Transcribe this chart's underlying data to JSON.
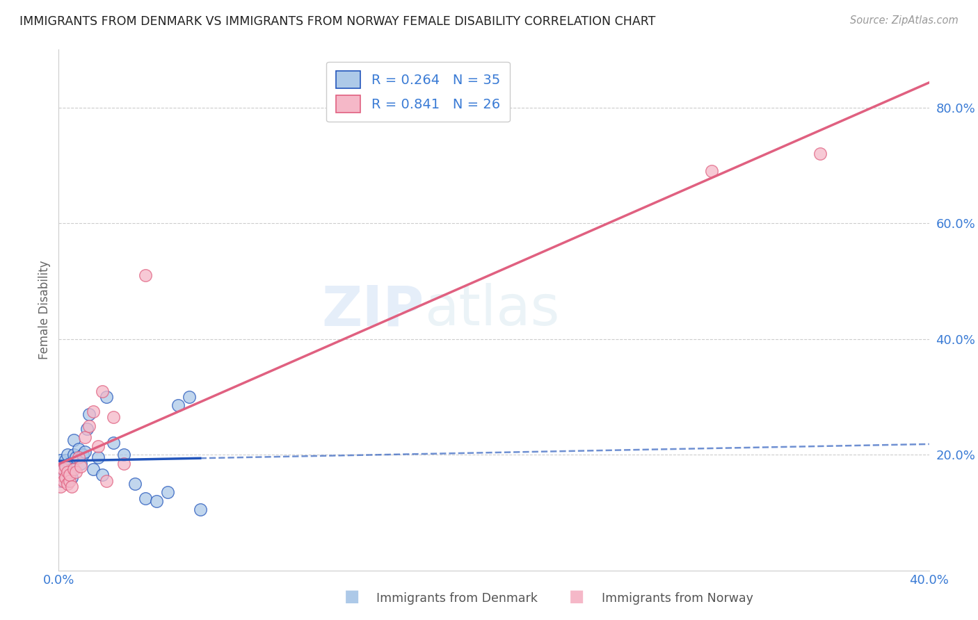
{
  "title": "IMMIGRANTS FROM DENMARK VS IMMIGRANTS FROM NORWAY FEMALE DISABILITY CORRELATION CHART",
  "source": "Source: ZipAtlas.com",
  "ylabel": "Female Disability",
  "xlim": [
    0.0,
    0.4
  ],
  "ylim": [
    0.0,
    0.9
  ],
  "xtick_labels": [
    "0.0%",
    "",
    "",
    "",
    "40.0%"
  ],
  "xtick_values": [
    0.0,
    0.1,
    0.2,
    0.3,
    0.4
  ],
  "ytick_labels": [
    "20.0%",
    "40.0%",
    "60.0%",
    "80.0%"
  ],
  "ytick_values": [
    0.2,
    0.4,
    0.6,
    0.8
  ],
  "legend_R1": "0.264",
  "legend_N1": "35",
  "legend_R2": "0.841",
  "legend_N2": "26",
  "color_denmark": "#adc9e8",
  "color_norway": "#f5b8c8",
  "line_color_denmark": "#2255bb",
  "line_color_norway": "#e06080",
  "watermark_zip": "ZIP",
  "watermark_atlas": "atlas",
  "background_color": "#ffffff",
  "grid_color": "#cccccc",
  "denmark_scatter_x": [
    0.001,
    0.001,
    0.002,
    0.002,
    0.003,
    0.003,
    0.003,
    0.004,
    0.004,
    0.005,
    0.005,
    0.006,
    0.006,
    0.007,
    0.007,
    0.008,
    0.009,
    0.01,
    0.011,
    0.012,
    0.013,
    0.014,
    0.016,
    0.018,
    0.02,
    0.022,
    0.025,
    0.03,
    0.035,
    0.04,
    0.045,
    0.05,
    0.055,
    0.06,
    0.065
  ],
  "denmark_scatter_y": [
    0.155,
    0.19,
    0.16,
    0.175,
    0.155,
    0.175,
    0.19,
    0.165,
    0.2,
    0.17,
    0.185,
    0.175,
    0.16,
    0.2,
    0.225,
    0.195,
    0.21,
    0.185,
    0.2,
    0.205,
    0.245,
    0.27,
    0.175,
    0.195,
    0.165,
    0.3,
    0.22,
    0.2,
    0.15,
    0.125,
    0.12,
    0.135,
    0.285,
    0.3,
    0.105
  ],
  "norway_scatter_x": [
    0.001,
    0.001,
    0.002,
    0.002,
    0.003,
    0.003,
    0.004,
    0.004,
    0.005,
    0.005,
    0.006,
    0.007,
    0.008,
    0.009,
    0.01,
    0.012,
    0.014,
    0.016,
    0.018,
    0.02,
    0.022,
    0.025,
    0.03,
    0.04,
    0.3,
    0.35
  ],
  "norway_scatter_y": [
    0.145,
    0.165,
    0.155,
    0.175,
    0.16,
    0.18,
    0.15,
    0.17,
    0.155,
    0.165,
    0.145,
    0.175,
    0.17,
    0.195,
    0.18,
    0.23,
    0.25,
    0.275,
    0.215,
    0.31,
    0.155,
    0.265,
    0.185,
    0.51,
    0.69,
    0.72
  ]
}
